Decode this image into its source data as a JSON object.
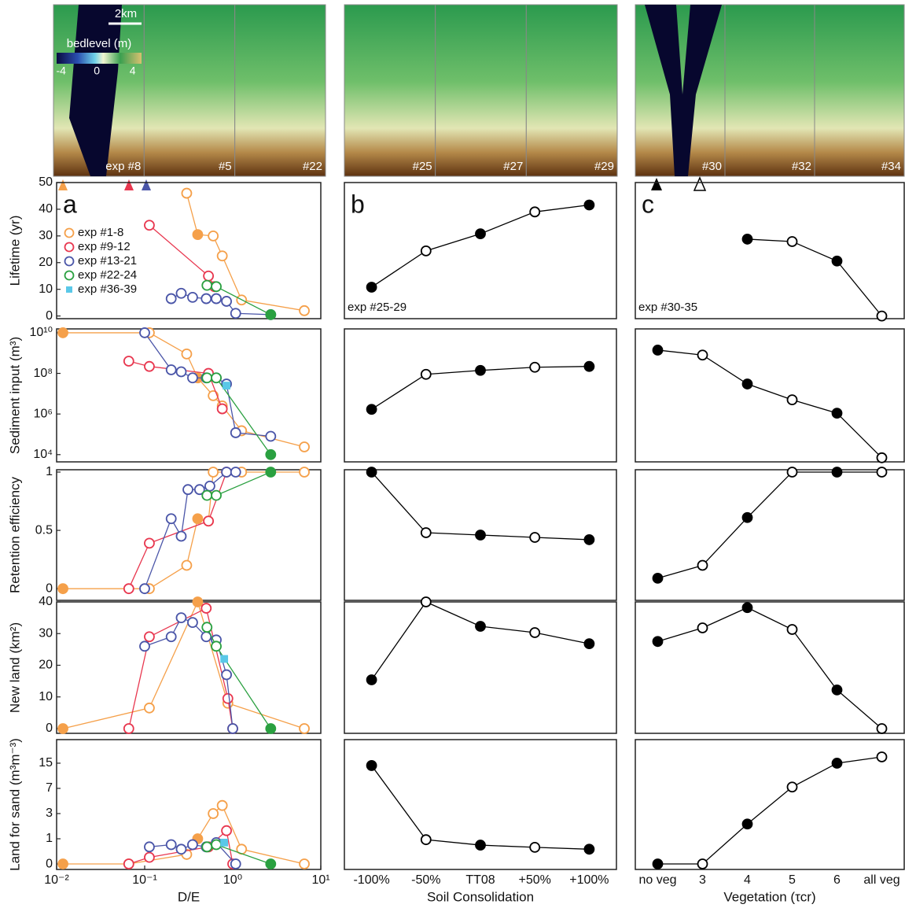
{
  "maps": {
    "scale_bar": "2km",
    "colorbar": {
      "title": "bedlevel (m)",
      "lim": [
        -4.5,
        5
      ],
      "ticks": [
        -4,
        0,
        4
      ]
    },
    "labels": [
      "exp #8",
      "#5",
      "#22",
      "#25",
      "#27",
      "#29",
      "#30",
      "#32",
      "#34"
    ]
  },
  "chart_data": [
    {
      "type": "line",
      "xscale": "log",
      "xlim": [
        0.01,
        10
      ],
      "ylim": [
        -1,
        50
      ],
      "yticks": [
        0,
        10,
        20,
        30,
        40,
        50
      ],
      "ylabel": "Lifetime (yr)",
      "annotation": "a",
      "legend": "upper left",
      "series": [
        {
          "name": "exp #1-8",
          "color": "#f5a04a",
          "marker": "circle",
          "x": [
            0.3,
            0.4,
            0.6,
            0.76,
            1.26,
            6.5
          ],
          "values": [
            46,
            30.5,
            30,
            22.5,
            6,
            2
          ],
          "filled": [
            false,
            true,
            false,
            false,
            false,
            false
          ]
        },
        {
          "name": "exp #9-12",
          "color": "#e8374f",
          "marker": "circle",
          "x": [
            0.113,
            0.53,
            0.62
          ],
          "values": [
            34,
            15,
            11
          ],
          "filled": [
            false,
            false,
            false
          ]
        },
        {
          "name": "exp #13-21",
          "color": "#4a55a8",
          "marker": "circle",
          "x": [
            0.2,
            0.26,
            0.35,
            0.5,
            0.65,
            0.85,
            1.08,
            2.7
          ],
          "values": [
            6.5,
            8.5,
            7,
            6.5,
            6.5,
            5.5,
            1,
            0.5
          ],
          "filled": [
            false,
            false,
            false,
            false,
            false,
            false,
            false,
            false
          ]
        },
        {
          "name": "exp #22-24",
          "color": "#2aa040",
          "marker": "circle",
          "x": [
            0.51,
            0.65,
            2.7
          ],
          "values": [
            11.5,
            11,
            0.5
          ],
          "filled": [
            false,
            false,
            true
          ]
        },
        {
          "name": "exp #36-39",
          "color": "#5ac8e8",
          "marker": "square",
          "x": [],
          "values": [],
          "filled": []
        }
      ]
    },
    {
      "type": "line",
      "ylim": [
        -1,
        50
      ],
      "annotation": "b",
      "label": "exp #25-29",
      "series": [
        {
          "color": "#000000",
          "values": [
            10.8,
            24.4,
            30.8,
            39,
            41.6
          ],
          "filled": [
            true,
            false,
            true,
            false,
            true
          ]
        }
      ]
    },
    {
      "type": "line",
      "ylim": [
        -1,
        50
      ],
      "annotation": "c",
      "label": "exp #30-35",
      "series": [
        {
          "color": "#000000",
          "values": [
            null,
            null,
            28.8,
            27.9,
            20.6,
            0
          ],
          "filled": [
            false,
            false,
            true,
            false,
            true,
            false
          ]
        }
      ]
    },
    {
      "type": "line",
      "xscale": "log",
      "xlim": [
        0.01,
        10
      ],
      "yscale": "log",
      "ylim": [
        4400,
        15500000000
      ],
      "yticks": [
        {
          "value": 10000,
          "label": "10⁴"
        },
        {
          "value": 1000000,
          "label": "10⁶"
        },
        {
          "value": 100000000,
          "label": "10⁸"
        },
        {
          "value": 10000000000,
          "label": "10¹⁰"
        }
      ],
      "ylabel": "Sediment  input (m³)",
      "series": [
        {
          "color": "#f5a04a",
          "marker": "circle",
          "x": [
            0.0118,
            0.113,
            0.3,
            0.4,
            0.6,
            0.76,
            1.26,
            6.5
          ],
          "values": [
            10000000000,
            10000000000,
            900000000,
            60000000,
            8000000,
            2500000,
            150000,
            24000
          ],
          "filled": [
            true,
            false,
            false,
            true,
            false,
            false,
            false,
            false
          ]
        },
        {
          "color": "#e8374f",
          "marker": "circle",
          "x": [
            0.066,
            0.113,
            0.53,
            0.76
          ],
          "values": [
            400000000,
            220000000,
            100000000,
            1800000
          ],
          "filled": [
            false,
            false,
            false,
            false
          ]
        },
        {
          "color": "#4a55a8",
          "marker": "circle",
          "x": [
            0.1,
            0.2,
            0.26,
            0.35,
            0.5,
            0.65,
            0.85,
            1.08,
            2.7
          ],
          "values": [
            10000000000,
            150000000,
            120000000,
            60000000,
            60000000,
            60000000,
            30000000,
            120000,
            80000
          ],
          "filled": [
            false,
            false,
            false,
            false,
            false,
            false,
            false,
            false,
            false
          ]
        },
        {
          "color": "#2aa040",
          "marker": "circle",
          "x": [
            0.51,
            0.65,
            2.7
          ],
          "values": [
            60000000,
            60000000,
            10000
          ],
          "filled": [
            false,
            false,
            true
          ]
        },
        {
          "color": "#5ac8e8",
          "marker": "square",
          "x": [
            0.85
          ],
          "values": [
            25000000
          ],
          "filled": [
            true
          ]
        }
      ]
    },
    {
      "type": "line",
      "yscale": "log",
      "ylim": [
        4400,
        15500000000
      ],
      "series": [
        {
          "color": "#000000",
          "values": [
            1700000,
            90000000,
            140000000,
            200000000,
            220000000
          ],
          "filled": [
            true,
            false,
            true,
            false,
            true
          ]
        }
      ]
    },
    {
      "type": "line",
      "yscale": "log",
      "ylim": [
        4400,
        15500000000
      ],
      "series": [
        {
          "color": "#000000",
          "values": [
            1400000000,
            800000000,
            30000000,
            5000000,
            1100000,
            7000
          ],
          "filled": [
            true,
            false,
            true,
            false,
            true,
            false
          ]
        }
      ]
    },
    {
      "type": "line",
      "xscale": "log",
      "xlim": [
        0.01,
        10
      ],
      "ylim": [
        -0.1,
        1.02
      ],
      "yticks": [
        0,
        0.5,
        1
      ],
      "ylabel": "Retention efficiency",
      "series": [
        {
          "color": "#f5a04a",
          "marker": "circle",
          "x": [
            0.0118,
            0.113,
            0.3,
            0.4,
            0.53,
            0.6,
            1.26,
            6.5
          ],
          "values": [
            0,
            0,
            0.2,
            0.6,
            0.58,
            1,
            1,
            1
          ],
          "filled": [
            true,
            false,
            false,
            true,
            false,
            false,
            false,
            false
          ]
        },
        {
          "color": "#e8374f",
          "marker": "circle",
          "x": [
            0.066,
            0.113,
            0.53,
            0.85
          ],
          "values": [
            0,
            0.39,
            0.58,
            1
          ],
          "filled": [
            false,
            false,
            false,
            false
          ]
        },
        {
          "color": "#4a55a8",
          "marker": "circle",
          "x": [
            0.1,
            0.2,
            0.26,
            0.31,
            0.42,
            0.55,
            0.85,
            1.08
          ],
          "values": [
            0,
            0.6,
            0.45,
            0.85,
            0.85,
            0.88,
            1,
            1
          ],
          "filled": [
            false,
            false,
            false,
            false,
            false,
            false,
            false,
            false
          ]
        },
        {
          "color": "#2aa040",
          "marker": "circle",
          "x": [
            0.51,
            0.65,
            2.7
          ],
          "values": [
            0.8,
            0.8,
            1
          ],
          "filled": [
            false,
            false,
            true
          ]
        }
      ]
    },
    {
      "type": "line",
      "ylim": [
        -0.1,
        1.02
      ],
      "series": [
        {
          "color": "#000000",
          "values": [
            1,
            0.48,
            0.46,
            0.44,
            0.42
          ],
          "filled": [
            true,
            false,
            true,
            false,
            true
          ]
        }
      ]
    },
    {
      "type": "line",
      "ylim": [
        -0.1,
        1.02
      ],
      "series": [
        {
          "color": "#000000",
          "values": [
            0.09,
            0.2,
            0.61,
            1,
            1,
            1
          ],
          "filled": [
            true,
            false,
            true,
            false,
            true,
            false
          ]
        }
      ]
    },
    {
      "type": "line",
      "xscale": "log",
      "xlim": [
        0.01,
        10
      ],
      "ylim": [
        -1.5,
        40
      ],
      "yticks": [
        0,
        10,
        20,
        30,
        40
      ],
      "ylabel": "New land (km²)",
      "series": [
        {
          "color": "#f5a04a",
          "marker": "circle",
          "x": [
            0.0118,
            0.113,
            0.4,
            0.88,
            6.5
          ],
          "values": [
            0,
            6.5,
            40,
            8,
            0
          ],
          "filled": [
            true,
            false,
            true,
            false,
            false
          ]
        },
        {
          "color": "#e8374f",
          "marker": "circle",
          "x": [
            0.066,
            0.113,
            0.5,
            0.88,
            1.0
          ],
          "values": [
            0,
            29,
            38,
            9.5,
            0
          ],
          "filled": [
            false,
            false,
            false,
            false,
            false
          ]
        },
        {
          "color": "#4a55a8",
          "marker": "circle",
          "x": [
            0.1,
            0.2,
            0.26,
            0.35,
            0.5,
            0.65,
            0.85,
            1.0
          ],
          "values": [
            26,
            29,
            35,
            33.5,
            29,
            28,
            17,
            0
          ],
          "filled": [
            false,
            false,
            false,
            false,
            false,
            false,
            false,
            false
          ]
        },
        {
          "color": "#2aa040",
          "marker": "circle",
          "x": [
            0.51,
            0.65,
            2.7
          ],
          "values": [
            32,
            26,
            0
          ],
          "filled": [
            false,
            false,
            true
          ]
        },
        {
          "color": "#5ac8e8",
          "marker": "square",
          "x": [
            0.8
          ],
          "values": [
            22
          ],
          "filled": [
            true
          ]
        }
      ]
    },
    {
      "type": "line",
      "ylim": [
        -1.5,
        40
      ],
      "series": [
        {
          "color": "#000000",
          "values": [
            15.4,
            40,
            32.3,
            30.3,
            26.8
          ],
          "filled": [
            true,
            false,
            true,
            false,
            true
          ]
        }
      ]
    },
    {
      "type": "line",
      "ylim": [
        -1.5,
        40
      ],
      "series": [
        {
          "color": "#000000",
          "values": [
            27.5,
            31.8,
            38.2,
            31.3,
            12.2,
            0
          ],
          "filled": [
            true,
            false,
            true,
            false,
            true,
            false
          ]
        }
      ]
    },
    {
      "type": "line",
      "xscale": "log",
      "xlim": [
        0.01,
        10
      ],
      "xticks": [
        {
          "value": 0.01,
          "label": "10⁻²"
        },
        {
          "value": 0.1,
          "label": "10⁻¹"
        },
        {
          "value": 1,
          "label": "10⁰"
        },
        {
          "value": 10,
          "label": "10¹"
        }
      ],
      "yscale": "log2(1+y)",
      "ylim": [
        -0.14,
        29.6
      ],
      "yticks": [
        0,
        1,
        3,
        7,
        15
      ],
      "ylabel": "Land for sand (m³m⁻³)",
      "xlabel": "D/E",
      "series": [
        {
          "color": "#f5a04a",
          "marker": "circle",
          "x": [
            0.0118,
            0.066,
            0.3,
            0.4,
            0.6,
            0.76,
            1.26,
            6.5
          ],
          "values": [
            0,
            0,
            0.3,
            1,
            3,
            4,
            0.5,
            0
          ],
          "filled": [
            true,
            false,
            false,
            true,
            false,
            false,
            false,
            false
          ]
        },
        {
          "color": "#e8374f",
          "marker": "circle",
          "x": [
            0.066,
            0.113,
            0.53,
            0.85,
            1.0
          ],
          "values": [
            0,
            0.2,
            0.6,
            1.5,
            0
          ],
          "filled": [
            false,
            false,
            false,
            false,
            false
          ]
        },
        {
          "color": "#4a55a8",
          "marker": "circle",
          "x": [
            0.113,
            0.2,
            0.26,
            0.35,
            0.5,
            0.65,
            1.08
          ],
          "values": [
            0.6,
            0.7,
            0.5,
            0.7,
            0.6,
            0.8,
            0
          ],
          "filled": [
            false,
            false,
            false,
            false,
            false,
            false,
            false
          ]
        },
        {
          "color": "#2aa040",
          "marker": "circle",
          "x": [
            0.51,
            0.65,
            2.7
          ],
          "values": [
            0.6,
            0.7,
            0
          ],
          "filled": [
            false,
            false,
            true
          ]
        },
        {
          "color": "#5ac8e8",
          "marker": "square",
          "x": [
            0.8
          ],
          "values": [
            0.8
          ],
          "filled": [
            true
          ]
        }
      ]
    },
    {
      "type": "line",
      "yscale": "log2(1+y)",
      "ylim": [
        -0.14,
        29.6
      ],
      "xlabel": "Soil Consolidation",
      "categories": [
        "-100%",
        "-50%",
        "TT08",
        "+50%",
        "+100%"
      ],
      "series": [
        {
          "color": "#000000",
          "values": [
            14,
            0.95,
            0.68,
            0.58,
            0.5
          ],
          "filled": [
            true,
            false,
            true,
            false,
            true
          ]
        }
      ]
    },
    {
      "type": "line",
      "yscale": "log2(1+y)",
      "ylim": [
        -0.14,
        29.6
      ],
      "xlabel": "Vegetation (τcr)",
      "categories": [
        "no veg",
        "3",
        "4",
        "5",
        "6",
        "all veg"
      ],
      "series": [
        {
          "color": "#000000",
          "values": [
            0,
            0,
            2,
            7.3,
            15,
            18
          ],
          "filled": [
            true,
            false,
            true,
            false,
            true,
            false
          ]
        }
      ]
    }
  ]
}
